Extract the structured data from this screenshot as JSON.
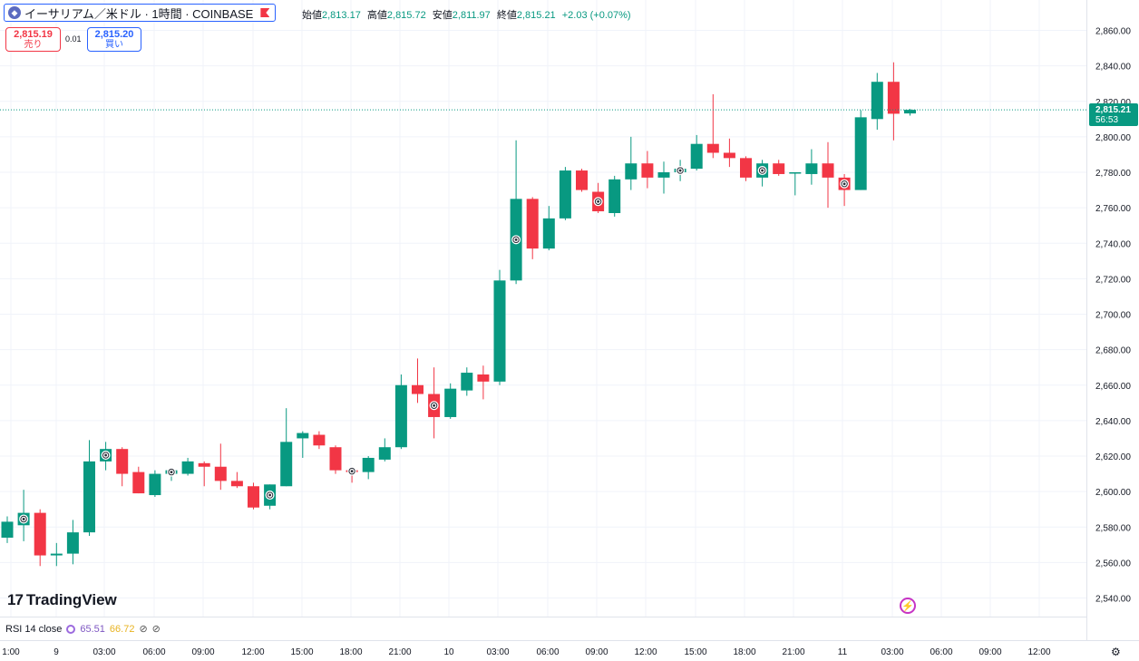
{
  "header": {
    "symbol_title": "イーサリアム／米ドル · 1時間 · COINBASE",
    "symbol_icon": "ethereum-icon",
    "ohlc": [
      {
        "label": "始値",
        "value": "2,813.17"
      },
      {
        "label": "高値",
        "value": "2,815.72"
      },
      {
        "label": "安値",
        "value": "2,811.97"
      },
      {
        "label": "終値",
        "value": "2,815.21"
      }
    ],
    "change": "+2.03 (+0.07%)",
    "sell": {
      "price": "2,815.19",
      "label": "売り"
    },
    "buy": {
      "price": "2,815.20",
      "label": "買い"
    },
    "spread": "0.01"
  },
  "last_price": {
    "price": "2,815.21",
    "countdown": "56:53"
  },
  "branding": {
    "logo_text": "TradingView",
    "logo_mark": "17"
  },
  "rsi": {
    "label": "RSI 14 close",
    "value1": "65.51",
    "value2": "66.72",
    "icon": "rsi-settings-icon"
  },
  "colors": {
    "up": "#089981",
    "down": "#f23645",
    "grid": "#f0f3fa",
    "text": "#131722"
  },
  "chart_data": {
    "type": "candlestick",
    "timeframe": "1h",
    "y_ticks": [
      "2,540.00",
      "2,560.00",
      "2,580.00",
      "2,600.00",
      "2,620.00",
      "2,640.00",
      "2,660.00",
      "2,680.00",
      "2,700.00",
      "2,720.00",
      "2,740.00",
      "2,760.00",
      "2,780.00",
      "2,800.00",
      "2,820.00",
      "2,840.00",
      "2,860.00"
    ],
    "ylim": [
      2535,
      2868
    ],
    "x_ticks": [
      "1:00",
      "9",
      "03:00",
      "06:00",
      "09:00",
      "12:00",
      "15:00",
      "18:00",
      "21:00",
      "10",
      "03:00",
      "06:00",
      "09:00",
      "12:00",
      "15:00",
      "18:00",
      "21:00",
      "11",
      "03:00",
      "06:00",
      "09:00",
      "12:00"
    ],
    "candles": [
      {
        "o": 2574,
        "h": 2586,
        "l": 2571,
        "c": 2583
      },
      {
        "o": 2581,
        "h": 2601,
        "l": 2572,
        "c": 2588
      },
      {
        "o": 2588,
        "h": 2590,
        "l": 2558,
        "c": 2564
      },
      {
        "o": 2564,
        "h": 2571,
        "l": 2558,
        "c": 2565
      },
      {
        "o": 2565,
        "h": 2584,
        "l": 2559,
        "c": 2577
      },
      {
        "o": 2577,
        "h": 2629,
        "l": 2575,
        "c": 2617
      },
      {
        "o": 2617,
        "h": 2628,
        "l": 2612,
        "c": 2624
      },
      {
        "o": 2624,
        "h": 2625,
        "l": 2603,
        "c": 2610
      },
      {
        "o": 2611,
        "h": 2614,
        "l": 2599,
        "c": 2599
      },
      {
        "o": 2598,
        "h": 2612,
        "l": 2597,
        "c": 2610
      },
      {
        "o": 2610,
        "h": 2613,
        "l": 2606,
        "c": 2612
      },
      {
        "o": 2610,
        "h": 2619,
        "l": 2609,
        "c": 2617
      },
      {
        "o": 2616,
        "h": 2617,
        "l": 2603,
        "c": 2614
      },
      {
        "o": 2614,
        "h": 2627,
        "l": 2601,
        "c": 2606
      },
      {
        "o": 2606,
        "h": 2611,
        "l": 2602,
        "c": 2603
      },
      {
        "o": 2603,
        "h": 2605,
        "l": 2590,
        "c": 2591
      },
      {
        "o": 2592,
        "h": 2604,
        "l": 2590,
        "c": 2604
      },
      {
        "o": 2603,
        "h": 2647,
        "l": 2603,
        "c": 2628
      },
      {
        "o": 2630,
        "h": 2634,
        "l": 2619,
        "c": 2633
      },
      {
        "o": 2632,
        "h": 2634,
        "l": 2624,
        "c": 2626
      },
      {
        "o": 2625,
        "h": 2626,
        "l": 2610,
        "c": 2612
      },
      {
        "o": 2612,
        "h": 2613,
        "l": 2605,
        "c": 2611
      },
      {
        "o": 2611,
        "h": 2620,
        "l": 2607,
        "c": 2619
      },
      {
        "o": 2618,
        "h": 2630,
        "l": 2617,
        "c": 2625
      },
      {
        "o": 2625,
        "h": 2666,
        "l": 2624,
        "c": 2660
      },
      {
        "o": 2660,
        "h": 2675,
        "l": 2650,
        "c": 2655
      },
      {
        "o": 2655,
        "h": 2670,
        "l": 2630,
        "c": 2642
      },
      {
        "o": 2642,
        "h": 2661,
        "l": 2641,
        "c": 2658
      },
      {
        "o": 2657,
        "h": 2670,
        "l": 2654,
        "c": 2667
      },
      {
        "o": 2666,
        "h": 2671,
        "l": 2652,
        "c": 2662
      },
      {
        "o": 2662,
        "h": 2725,
        "l": 2660,
        "c": 2719
      },
      {
        "o": 2719,
        "h": 2798,
        "l": 2717,
        "c": 2765
      },
      {
        "o": 2765,
        "h": 2766,
        "l": 2731,
        "c": 2737
      },
      {
        "o": 2737,
        "h": 2761,
        "l": 2736,
        "c": 2754
      },
      {
        "o": 2754,
        "h": 2783,
        "l": 2753,
        "c": 2781
      },
      {
        "o": 2781,
        "h": 2782,
        "l": 2769,
        "c": 2770
      },
      {
        "o": 2769,
        "h": 2774,
        "l": 2757,
        "c": 2758
      },
      {
        "o": 2757,
        "h": 2778,
        "l": 2755,
        "c": 2776
      },
      {
        "o": 2776,
        "h": 2800,
        "l": 2770,
        "c": 2785
      },
      {
        "o": 2785,
        "h": 2792,
        "l": 2771,
        "c": 2777
      },
      {
        "o": 2777,
        "h": 2786,
        "l": 2768,
        "c": 2780
      },
      {
        "o": 2780,
        "h": 2787,
        "l": 2775,
        "c": 2782
      },
      {
        "o": 2782,
        "h": 2801,
        "l": 2781,
        "c": 2796
      },
      {
        "o": 2796,
        "h": 2824,
        "l": 2788,
        "c": 2791
      },
      {
        "o": 2791,
        "h": 2799,
        "l": 2783,
        "c": 2788
      },
      {
        "o": 2788,
        "h": 2789,
        "l": 2775,
        "c": 2777
      },
      {
        "o": 2777,
        "h": 2787,
        "l": 2772,
        "c": 2785
      },
      {
        "o": 2785,
        "h": 2787,
        "l": 2778,
        "c": 2779
      },
      {
        "o": 2780,
        "h": 2780,
        "l": 2767,
        "c": 2780
      },
      {
        "o": 2779,
        "h": 2793,
        "l": 2773,
        "c": 2785
      },
      {
        "o": 2785,
        "h": 2797,
        "l": 2760,
        "c": 2777
      },
      {
        "o": 2777,
        "h": 2779,
        "l": 2761,
        "c": 2770
      },
      {
        "o": 2770,
        "h": 2815,
        "l": 2770,
        "c": 2811
      },
      {
        "o": 2810,
        "h": 2836,
        "l": 2804,
        "c": 2831
      },
      {
        "o": 2831,
        "h": 2842,
        "l": 2798,
        "c": 2813
      },
      {
        "o": 2813.17,
        "h": 2815.72,
        "l": 2811.97,
        "c": 2815.21
      }
    ],
    "markers": [
      1,
      6,
      10,
      16,
      21,
      26,
      31,
      36,
      41,
      46,
      51
    ]
  }
}
